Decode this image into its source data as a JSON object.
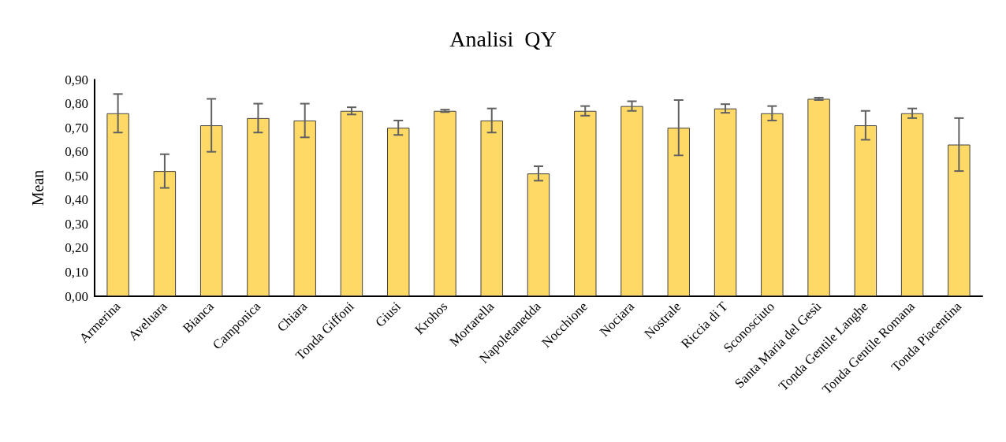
{
  "chart_data": {
    "type": "bar",
    "title": "Analisi  QY",
    "ylabel": "Mean",
    "categories": [
      "Armerina",
      "Aveluara",
      "Bianca",
      "Camponica",
      "Chiara",
      "Tonda Giffoni",
      "Giusi",
      "Krohos",
      "Mortarella",
      "Napoletanedda",
      "Nocchione",
      "Nociara",
      "Nostrale",
      "Riccia di T",
      "Sconosciuto",
      "Santa Maria del Gesù",
      "Tonda Gentile Langhe",
      "Tonda Gentile Romana",
      "Tonda Piacentina"
    ],
    "values": [
      0.76,
      0.52,
      0.71,
      0.74,
      0.73,
      0.77,
      0.7,
      0.77,
      0.73,
      0.51,
      0.77,
      0.79,
      0.7,
      0.78,
      0.76,
      0.82,
      0.71,
      0.76,
      0.63
    ],
    "errors": [
      0.08,
      0.07,
      0.11,
      0.06,
      0.07,
      0.015,
      0.03,
      0.005,
      0.05,
      0.03,
      0.02,
      0.02,
      0.115,
      0.018,
      0.03,
      0.005,
      0.06,
      0.02,
      0.11
    ],
    "color": "#ffd966",
    "ylim": [
      0,
      0.9
    ],
    "yticks": [
      {
        "value": 0,
        "label": "0,00"
      },
      {
        "value": 0.1,
        "label": "0,10"
      },
      {
        "value": 0.2,
        "label": "0,20"
      },
      {
        "value": 0.3,
        "label": "0,30"
      },
      {
        "value": 0.4,
        "label": "0,40"
      },
      {
        "value": 0.5,
        "label": "0,50"
      },
      {
        "value": 0.6,
        "label": "0,60"
      },
      {
        "value": 0.7,
        "label": "0,70"
      },
      {
        "value": 0.8,
        "label": "0,80"
      },
      {
        "value": 0.9,
        "label": "0,90"
      }
    ],
    "grid": false
  }
}
